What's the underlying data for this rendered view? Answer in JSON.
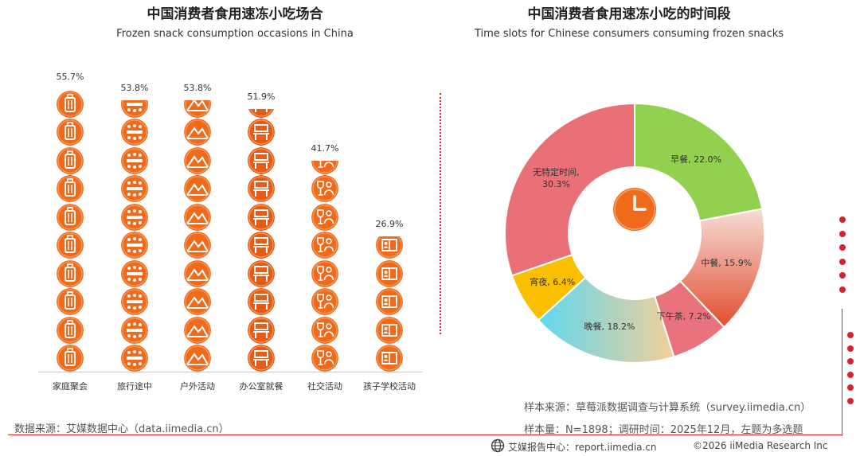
{
  "left": {
    "title": "中国消费者食用速冻小吃场合",
    "subtitle": "Frozen snack consumption occasions in China",
    "source": "数据来源：艾媒数据中心（data.iimedia.cn）"
  },
  "right": {
    "title": "中国消费者食用速冻小吃的时间段",
    "subtitle": "Time slots for Chinese consumers consuming frozen snacks",
    "center_icon": "clock-icon"
  },
  "notes": {
    "sample_source": "样本来源：草莓派数据调查与计算系统（survey.iimedia.cn）",
    "sample_size": "样本量：N=1898；调研时间：2025年12月，左题为多选题"
  },
  "footer": {
    "logo_icon": "globe-icon",
    "report_center": "艾媒报告中心：report.iimedia.cn",
    "copyright": "©2026  iiMedia Research  Inc"
  },
  "colors": {
    "accent_red": "#d9232b",
    "icon_orange": "#ef6a1a"
  },
  "chart_data": [
    {
      "type": "bar",
      "title": "中国消费者食用速冻小吃场合",
      "subtitle": "Frozen snack consumption occasions in China",
      "categories": [
        "家庭聚会",
        "旅行途中",
        "户外活动",
        "办公室就餐",
        "社交活动",
        "孩子学校活动"
      ],
      "values": [
        55.7,
        53.8,
        53.8,
        51.9,
        41.7,
        26.9
      ],
      "value_labels": [
        "55.7%",
        "53.8%",
        "53.8%",
        "51.9%",
        "41.7%",
        "26.9%"
      ],
      "icons": [
        "suitcase-icon",
        "dining-table-icon",
        "mountain-icon",
        "office-desk-icon",
        "wine-people-icon",
        "school-book-icon"
      ],
      "unit": "%",
      "style": "pictogram"
    },
    {
      "type": "pie",
      "title": "中国消费者食用速冻小吃的时间段",
      "subtitle": "Time slots for Chinese consumers consuming frozen snacks",
      "donut": true,
      "slices": [
        {
          "name": "早餐",
          "value": 22.0,
          "label": "早餐, 22.0%",
          "color": "#92d14f"
        },
        {
          "name": "中餐",
          "value": 15.9,
          "label": "中餐, 15.9%",
          "color": "#e05a3a"
        },
        {
          "name": "下午茶",
          "value": 7.2,
          "label": "下午茶, 7.2%",
          "color": "#e8737c"
        },
        {
          "name": "晚餐",
          "value": 18.2,
          "label": "晚餐, 18.2%",
          "color": "#b9d8c8"
        },
        {
          "name": "宵夜",
          "value": 6.4,
          "label": "宵夜, 6.4%",
          "color": "#fbbf00"
        },
        {
          "name": "无特定时间",
          "value": 30.3,
          "label": "无特定时间,\n30.3%",
          "color": "#ea7077"
        }
      ]
    }
  ]
}
